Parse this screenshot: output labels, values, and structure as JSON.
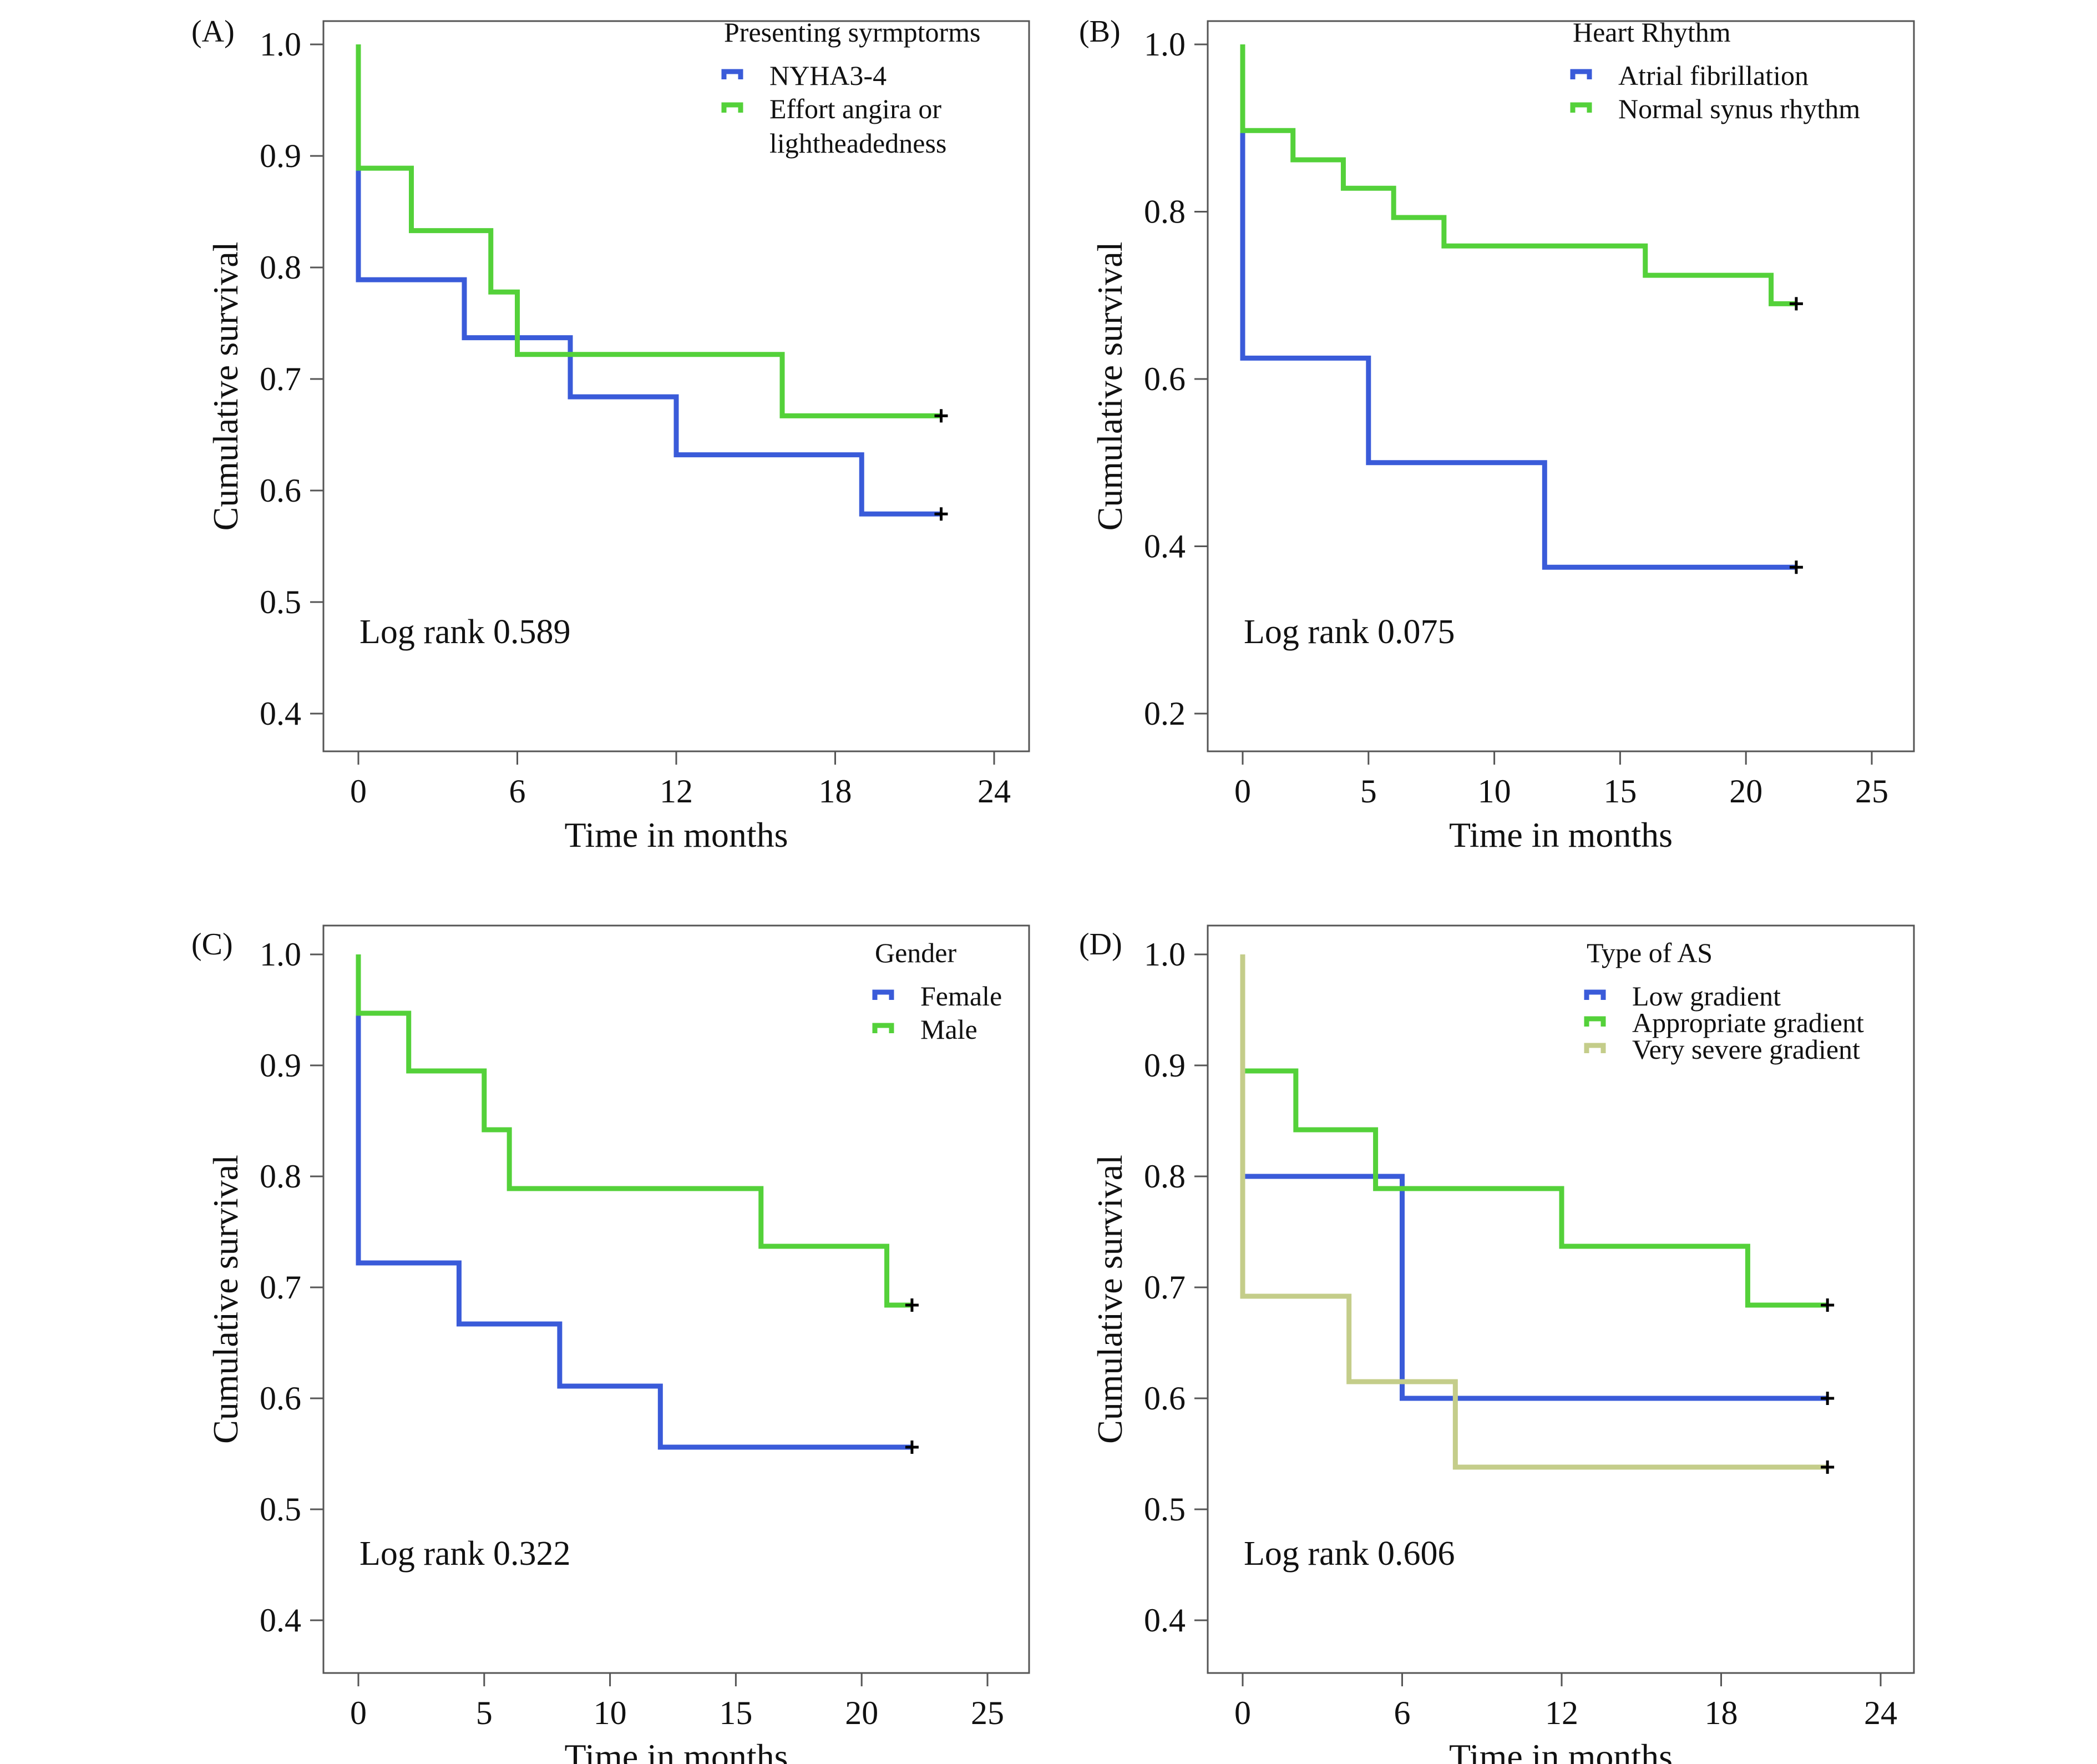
{
  "chart_data": [
    {
      "panel_label": "(A)",
      "type": "line",
      "step": "post",
      "xlabel": "Time in months",
      "ylabel": "Cumulative survival",
      "xlim": [
        0,
        24
      ],
      "ylim": [
        0.4,
        1.0
      ],
      "xticks": [
        "0",
        "6",
        "12",
        "18",
        "24"
      ],
      "yticks": [
        "0.4",
        "0.5",
        "0.6",
        "0.7",
        "0.8",
        "0.9",
        "1.0"
      ],
      "annotation": "Log rank 0.589",
      "legend_title": "Presenting syrmptorms",
      "legend_placement": "top-right",
      "series": [
        {
          "name": "NYHA3-4",
          "color": "#3a5bd9",
          "x": [
            0,
            0,
            4,
            8,
            12,
            19,
            22
          ],
          "y": [
            1.0,
            0.789,
            0.737,
            0.684,
            0.632,
            0.579,
            0.579
          ],
          "censored": [
            [
              22,
              0.579
            ]
          ]
        },
        {
          "name": "Effort angira or lightheadedness",
          "color": "#54d13a",
          "x": [
            0,
            0,
            2,
            5,
            6,
            16,
            22
          ],
          "y": [
            1.0,
            0.889,
            0.833,
            0.778,
            0.722,
            0.667,
            0.667
          ],
          "censored": [
            [
              22,
              0.667
            ]
          ]
        }
      ]
    },
    {
      "panel_label": "(B)",
      "type": "line",
      "step": "post",
      "xlabel": "Time in months",
      "ylabel": "Cumulative survival",
      "xlim": [
        0,
        25
      ],
      "ylim": [
        0.2,
        1.0
      ],
      "xticks": [
        "0",
        "5",
        "10",
        "15",
        "20",
        "25"
      ],
      "yticks": [
        "0.2",
        "0.4",
        "0.6",
        "0.8",
        "1.0"
      ],
      "annotation": "Log rank 0.075",
      "legend_title": "Heart Rhythm",
      "legend_placement": "top-right",
      "series": [
        {
          "name": "Atrial fibrillation",
          "color": "#3a5bd9",
          "x": [
            0,
            0,
            5,
            12,
            22
          ],
          "y": [
            1.0,
            0.625,
            0.5,
            0.375,
            0.375
          ],
          "censored": [
            [
              22,
              0.375
            ]
          ]
        },
        {
          "name": "Normal synus rhythm",
          "color": "#54d13a",
          "x": [
            0,
            0,
            2,
            4,
            6,
            8,
            16,
            21,
            22
          ],
          "y": [
            1.0,
            0.897,
            0.862,
            0.828,
            0.793,
            0.759,
            0.724,
            0.69,
            0.69
          ],
          "censored": [
            [
              22,
              0.69
            ]
          ]
        }
      ]
    },
    {
      "panel_label": "(C)",
      "type": "line",
      "step": "post",
      "xlabel": "Time in months",
      "ylabel": "Cumulative survival",
      "xlim": [
        0,
        25
      ],
      "ylim": [
        0.4,
        1.0
      ],
      "xticks": [
        "0",
        "5",
        "10",
        "15",
        "20",
        "25"
      ],
      "yticks": [
        "0.4",
        "0.5",
        "0.6",
        "0.7",
        "0.8",
        "0.9",
        "1.0"
      ],
      "annotation": "Log rank 0.322",
      "legend_title": "Gender",
      "legend_placement": "top-right",
      "series": [
        {
          "name": "Female",
          "color": "#3a5bd9",
          "x": [
            0,
            0,
            4,
            8,
            12,
            22
          ],
          "y": [
            1.0,
            0.722,
            0.667,
            0.611,
            0.556,
            0.556
          ],
          "censored": [
            [
              22,
              0.556
            ]
          ]
        },
        {
          "name": "Male",
          "color": "#54d13a",
          "x": [
            0,
            0,
            2,
            5,
            6,
            16,
            21,
            22
          ],
          "y": [
            1.0,
            0.947,
            0.895,
            0.842,
            0.789,
            0.737,
            0.684,
            0.684
          ],
          "censored": [
            [
              22,
              0.684
            ]
          ]
        }
      ]
    },
    {
      "panel_label": "(D)",
      "type": "line",
      "step": "post",
      "xlabel": "Time in months",
      "ylabel": "Cumulative survival",
      "xlim": [
        0,
        24
      ],
      "ylim": [
        0.4,
        1.0
      ],
      "xticks": [
        "0",
        "6",
        "12",
        "18",
        "24"
      ],
      "yticks": [
        "0.4",
        "0.5",
        "0.6",
        "0.7",
        "0.8",
        "0.9",
        "1.0"
      ],
      "annotation": "Log rank 0.606",
      "legend_title": "Type of AS",
      "legend_placement": "top-right",
      "series": [
        {
          "name": "Low gradient",
          "color": "#3a5bd9",
          "x": [
            0,
            0,
            6,
            22
          ],
          "y": [
            1.0,
            0.8,
            0.6,
            0.6
          ],
          "censored": [
            [
              22,
              0.6
            ]
          ]
        },
        {
          "name": "Appropriate gradient",
          "color": "#54d13a",
          "x": [
            0,
            0,
            2,
            5,
            12,
            19,
            22
          ],
          "y": [
            1.0,
            0.895,
            0.842,
            0.789,
            0.737,
            0.684,
            0.684
          ],
          "censored": [
            [
              22,
              0.684
            ]
          ]
        },
        {
          "name": "Very severe gradient",
          "color": "#c4cd8a",
          "x": [
            0,
            0,
            4,
            8,
            22
          ],
          "y": [
            1.0,
            0.692,
            0.615,
            0.538,
            0.538
          ],
          "censored": [
            [
              22,
              0.538
            ]
          ]
        }
      ]
    }
  ]
}
